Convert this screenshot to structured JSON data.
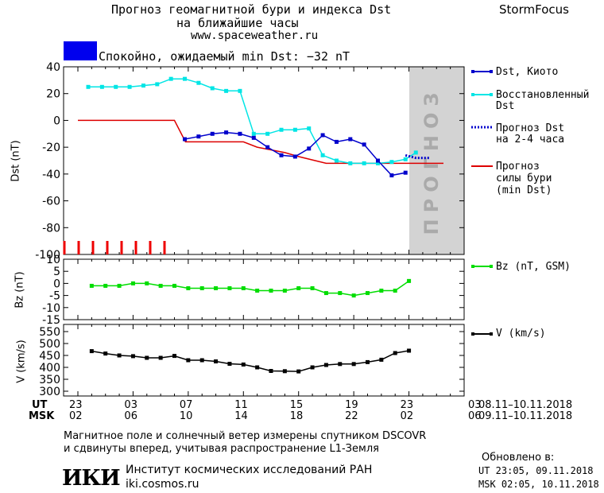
{
  "header": {
    "title_line1": "Прогноз геомагнитной бури и индекса Dst",
    "title_line2": "на ближайшие часы",
    "website": "www.spaceweather.ru",
    "brand": "StormFocus",
    "status_text": "Спокойно, ожидаемый min Dst: −32 nT",
    "status_color": "#0000ee"
  },
  "chart_data": [
    {
      "type": "line",
      "panel": "dst",
      "ylabel": "Dst (nT)",
      "ylim": [
        -100,
        40
      ],
      "yticks": [
        40,
        20,
        0,
        -20,
        -40,
        -60,
        -80,
        -100
      ],
      "x_hours": [
        0,
        21
      ],
      "forecast_region_label": "ПРОГНОЗ",
      "series": [
        {
          "name": "Dst, Киото",
          "color": "#0000cc",
          "x": [
            7.75,
            8.75,
            9.75,
            10.75,
            11.75,
            12.75,
            13.75,
            14.75,
            15.75,
            16.75,
            17.75,
            18.75,
            19.75,
            20.75
          ],
          "y": [
            -14,
            -12,
            -10,
            -9,
            -10,
            -13,
            -20,
            -26,
            -27,
            -21,
            -11,
            -16,
            -14,
            -18
          ]
        },
        {
          "name": "Восстановленный Dst",
          "color": "#00e5e5",
          "x": [
            0.75,
            1.75,
            2.75,
            3.75,
            4.75,
            5.75,
            6.75,
            7.75,
            8.75,
            9.75,
            10.75,
            11.75,
            12.75,
            13.75,
            14.75,
            15.75,
            16.75,
            17.75,
            18.75,
            19.75,
            20.75
          ],
          "y": [
            25,
            25,
            25,
            25,
            26,
            27,
            31,
            31,
            28,
            24,
            22,
            22,
            -10,
            -10,
            -7,
            -7,
            -6,
            -26,
            -30,
            -32,
            -32
          ]
        },
        {
          "name": "Прогноз Dst на 2-4 часа",
          "color": "#0000cc",
          "style": "dotted",
          "x": [
            23.75,
            24.5,
            25.5
          ],
          "y": [
            -26,
            -28,
            -28
          ]
        },
        {
          "name": "Прогноз силы бури (min Dst)",
          "color": "#dd0000",
          "x": [
            0,
            7,
            7.8,
            12,
            13,
            15,
            16,
            18,
            26.5
          ],
          "y": [
            0,
            0,
            -16,
            -16,
            -20,
            -24,
            -27,
            -32,
            -32
          ]
        }
      ],
      "tail_kyoto": {
        "x": [
          21.75,
          22.75,
          23.75
        ],
        "y": [
          -30,
          -41,
          -39
        ]
      },
      "tail_restored": {
        "x": [
          21.75,
          22.75,
          23.75,
          24.5
        ],
        "y": [
          -32,
          -31,
          -29,
          -24
        ]
      }
    },
    {
      "type": "line",
      "panel": "bz",
      "ylabel": "Bz (nT)",
      "ylim": [
        -15,
        10
      ],
      "yticks": [
        10,
        5,
        0,
        -5,
        -10,
        -15
      ],
      "series": [
        {
          "name": "Bz (nT, GSM)",
          "color": "#00dd00",
          "x": [
            1,
            2,
            3,
            4,
            5,
            6,
            7,
            8,
            9,
            10,
            11,
            12,
            13,
            14,
            15,
            16,
            17,
            18,
            19,
            20,
            21,
            22,
            23,
            24
          ],
          "y": [
            -1,
            -1,
            -1,
            0,
            0,
            -1,
            -1,
            -2,
            -2,
            -2,
            -2,
            -2,
            -3,
            -3,
            -3,
            -2,
            -2,
            -4,
            -4,
            -5,
            -4,
            -3,
            -3,
            1
          ]
        }
      ]
    },
    {
      "type": "line",
      "panel": "v",
      "ylabel": "V (km/s)",
      "ylim": [
        280,
        580
      ],
      "yticks": [
        550,
        500,
        450,
        400,
        350,
        300
      ],
      "series": [
        {
          "name": "V (km/s)",
          "color": "#000000",
          "x": [
            1,
            2,
            3,
            4,
            5,
            6,
            7,
            8,
            9,
            10,
            11,
            12,
            13,
            14,
            15,
            16,
            17,
            18,
            19,
            20,
            21,
            22,
            23,
            24
          ],
          "y": [
            468,
            458,
            450,
            447,
            440,
            440,
            448,
            430,
            430,
            425,
            415,
            412,
            400,
            385,
            384,
            383,
            400,
            410,
            414,
            414,
            422,
            432,
            460,
            470
          ]
        }
      ]
    }
  ],
  "xaxis": {
    "ut_label": "UT",
    "msk_label": "MSK",
    "ut_ticks": [
      "23",
      "03",
      "07",
      "11",
      "15",
      "19",
      "23",
      "03"
    ],
    "msk_ticks": [
      "02",
      "06",
      "10",
      "14",
      "18",
      "22",
      "02",
      "06"
    ],
    "ut_range": "08.11–10.11.2018",
    "msk_range": "09.11–10.11.2018"
  },
  "legend": {
    "dst_kyoto": "Dst, Киото",
    "restored_1": "Восстановленный",
    "restored_2": "Dst",
    "forecast_1": "Прогноз Dst",
    "forecast_2": "на 2-4 часа",
    "storm_1": "Прогноз",
    "storm_2": "силы бури",
    "storm_3": "(min Dst)",
    "bz": "Bz (nT, GSM)",
    "v": "V (km/s)"
  },
  "footer": {
    "note_line1": "Магнитное поле и солнечный ветер измерены спутником DSCOVR",
    "note_line2": "и сдвинуты вперед, учитывая распространение L1-Земля",
    "institute": "Институт космических исследований РАН",
    "url": "iki.cosmos.ru",
    "logo_text": "ИКИ",
    "updated_label": "Обновлено в:",
    "updated_ut": "UT   23:05, 09.11.2018",
    "updated_msk": "MSK 02:05, 10.11.2018"
  }
}
